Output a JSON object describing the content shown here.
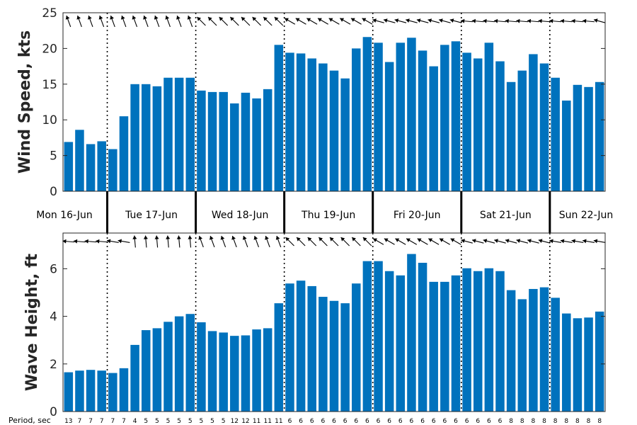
{
  "chart_data": [
    {
      "type": "bar",
      "ylabel": "Wind Speed, kts",
      "ylim": [
        0,
        25
      ],
      "yticks": [
        0,
        5,
        10,
        15,
        20,
        25
      ],
      "bar_color": "#0072BD",
      "values": [
        6.9,
        8.6,
        6.6,
        7.0,
        5.9,
        10.5,
        15.0,
        15.0,
        14.7,
        15.9,
        15.9,
        15.9,
        14.1,
        13.9,
        13.9,
        12.3,
        13.8,
        13.0,
        14.3,
        20.5,
        19.4,
        19.3,
        18.6,
        17.9,
        16.9,
        15.8,
        20.0,
        21.6,
        20.8,
        18.1,
        20.8,
        21.5,
        19.7,
        17.5,
        20.5,
        21.0,
        19.4,
        18.6,
        20.8,
        18.2,
        15.3,
        16.9,
        19.2,
        17.9,
        15.9,
        12.7,
        14.9,
        14.6,
        15.3
      ],
      "direction_arrows_deg": [
        340,
        340,
        340,
        340,
        340,
        340,
        340,
        340,
        340,
        340,
        340,
        340,
        315,
        315,
        315,
        315,
        315,
        315,
        315,
        315,
        300,
        300,
        300,
        300,
        300,
        300,
        300,
        300,
        285,
        285,
        285,
        285,
        285,
        285,
        285,
        285,
        275,
        275,
        275,
        275,
        275,
        275,
        275,
        275,
        275,
        275,
        275,
        275,
        285
      ]
    },
    {
      "type": "bar",
      "ylabel": "Wave Height, ft",
      "ylim": [
        0,
        7.5
      ],
      "yticks": [
        0,
        2,
        4,
        6
      ],
      "bar_color": "#0072BD",
      "values": [
        1.65,
        1.72,
        1.75,
        1.72,
        1.62,
        1.82,
        2.8,
        3.42,
        3.5,
        3.77,
        4.0,
        4.1,
        3.75,
        3.38,
        3.32,
        3.18,
        3.2,
        3.45,
        3.5,
        4.55,
        5.38,
        5.5,
        5.27,
        4.82,
        4.65,
        4.55,
        5.38,
        6.32,
        6.32,
        5.9,
        5.72,
        6.62,
        6.25,
        5.45,
        5.45,
        5.72,
        6.02,
        5.9,
        6.02,
        5.9,
        5.1,
        4.72,
        5.15,
        5.22,
        4.78,
        4.12,
        3.92,
        3.95,
        4.2
      ],
      "direction_arrows_deg": [
        275,
        275,
        275,
        275,
        280,
        280,
        355,
        355,
        355,
        355,
        355,
        355,
        340,
        340,
        340,
        340,
        340,
        340,
        340,
        340,
        315,
        315,
        315,
        315,
        315,
        315,
        315,
        315,
        300,
        300,
        300,
        300,
        300,
        300,
        300,
        300,
        285,
        285,
        285,
        285,
        285,
        285,
        285,
        285,
        280,
        280,
        280,
        280,
        280
      ]
    }
  ],
  "days": [
    "Mon 16-Jun",
    "Tue 17-Jun",
    "Wed 18-Jun",
    "Thu 19-Jun",
    "Fri 20-Jun",
    "Sat 21-Jun",
    "Sun 22-Jun"
  ],
  "day_boundaries_after_bar": [
    4,
    12,
    20,
    28,
    36,
    44
  ],
  "period_label": "Period, sec",
  "periods": [
    "13",
    "7",
    "7",
    "7",
    "7",
    "7",
    "4",
    "5",
    "5",
    "5",
    "5",
    "5",
    "5",
    "5",
    "5",
    "12",
    "12",
    "11",
    "11",
    "11",
    "6",
    "6",
    "6",
    "6",
    "6",
    "6",
    "6",
    "6",
    "6",
    "6",
    "6",
    "6",
    "6",
    "6",
    "6",
    "6",
    "6",
    "6",
    "6",
    "6",
    "8",
    "8",
    "8",
    "8",
    "8",
    "8",
    "8",
    "8",
    "8"
  ]
}
